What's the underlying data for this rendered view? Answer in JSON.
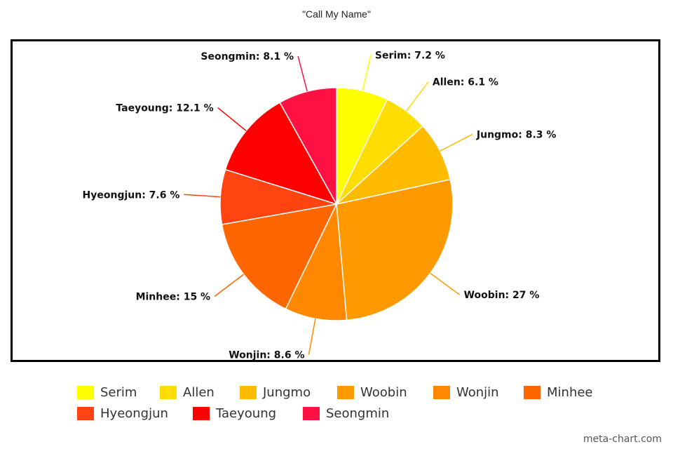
{
  "chart_data": {
    "type": "pie",
    "title": "\"Call My Name\"",
    "categories": [
      "Serim",
      "Allen",
      "Jungmo",
      "Woobin",
      "Wonjin",
      "Minhee",
      "Hyeongjun",
      "Taeyoung",
      "Seongmin"
    ],
    "values": [
      7.2,
      6.1,
      8.3,
      27,
      8.6,
      15,
      7.6,
      12.1,
      8.1
    ],
    "data_labels": [
      "Serim: 7.2 %",
      "Allen: 6.1 %",
      "Jungmo: 8.3 %",
      "Woobin: 27 %",
      "Wonjin: 8.6 %",
      "Minhee: 15 %",
      "Hyeongjun: 7.6 %",
      "Taeyoung: 12.1 %",
      "Seongmin: 8.1 %"
    ],
    "colors": [
      "#ffff00",
      "#ffdd00",
      "#ffbb00",
      "#ff9900",
      "#ff8800",
      "#ff6600",
      "#ff4411",
      "#ff0000",
      "#ff1144"
    ],
    "legend_placement": "bottom"
  },
  "credit": "meta-chart.com"
}
